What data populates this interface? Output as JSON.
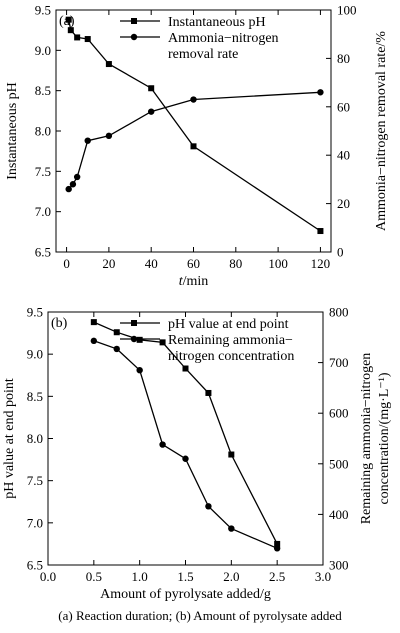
{
  "chart_data": [
    {
      "type": "line",
      "panel_label": "(a)",
      "xlabel_italic": "t",
      "xlabel_unit": "/min",
      "ylabel": "Instantaneous pH",
      "y2label": "Ammonia−nitrogen removal rate/%",
      "xlim": [
        -5,
        125
      ],
      "ylim": [
        6.5,
        9.5
      ],
      "y2lim": [
        0,
        100
      ],
      "xticks": [
        0,
        20,
        40,
        60,
        80,
        100,
        120
      ],
      "yticks": [
        6.5,
        7.0,
        7.5,
        8.0,
        8.5,
        9.0,
        9.5
      ],
      "y2ticks": [
        0,
        20,
        40,
        60,
        80,
        100
      ],
      "legend_position": "top-right",
      "series": [
        {
          "name": "Instantaneous pH",
          "marker": "square",
          "axis": "left",
          "x": [
            1,
            2,
            5,
            10,
            20,
            40,
            60,
            120
          ],
          "y": [
            9.38,
            9.25,
            9.16,
            9.14,
            8.83,
            8.53,
            7.81,
            6.76
          ]
        },
        {
          "name_lines": [
            "Ammonia−nitrogen",
            "removal rate"
          ],
          "marker": "circle",
          "axis": "right",
          "x": [
            1,
            3,
            5,
            10,
            20,
            40,
            60,
            120
          ],
          "y": [
            26,
            28,
            31,
            46,
            48,
            58,
            63,
            66
          ]
        }
      ]
    },
    {
      "type": "line",
      "panel_label": "(b)",
      "xlabel": "Amount of pyrolysate added/g",
      "ylabel": "pH value at end point",
      "y2label_lines": [
        "Remaining ammonia−nitrogen",
        "concentration/(mg·L⁻¹)"
      ],
      "xlim": [
        0,
        3.0
      ],
      "ylim": [
        6.5,
        9.5
      ],
      "y2lim": [
        300,
        800
      ],
      "xticks": [
        0,
        0.5,
        1.0,
        1.5,
        2.0,
        2.5,
        3.0
      ],
      "yticks": [
        6.5,
        7.0,
        7.5,
        8.0,
        8.5,
        9.0,
        9.5
      ],
      "y2ticks": [
        300,
        400,
        500,
        600,
        700,
        800
      ],
      "legend_position": "top-right",
      "series": [
        {
          "name": "pH value at end point",
          "marker": "square",
          "axis": "left",
          "x": [
            0.5,
            0.75,
            1.0,
            1.25,
            1.5,
            1.75,
            2.0,
            2.5
          ],
          "y": [
            9.38,
            9.26,
            9.17,
            9.14,
            8.83,
            8.54,
            7.81,
            6.75
          ]
        },
        {
          "name_lines": [
            "Remaining ammonia−",
            "nitrogen concentration"
          ],
          "marker": "circle",
          "axis": "right",
          "x": [
            0.5,
            0.75,
            1.0,
            1.25,
            1.5,
            1.75,
            2.0,
            2.5
          ],
          "y": [
            743,
            727,
            685,
            538,
            510,
            416,
            372,
            333
          ]
        }
      ]
    }
  ],
  "caption": "(a) Reaction duration; (b) Amount of pyrolysate added"
}
